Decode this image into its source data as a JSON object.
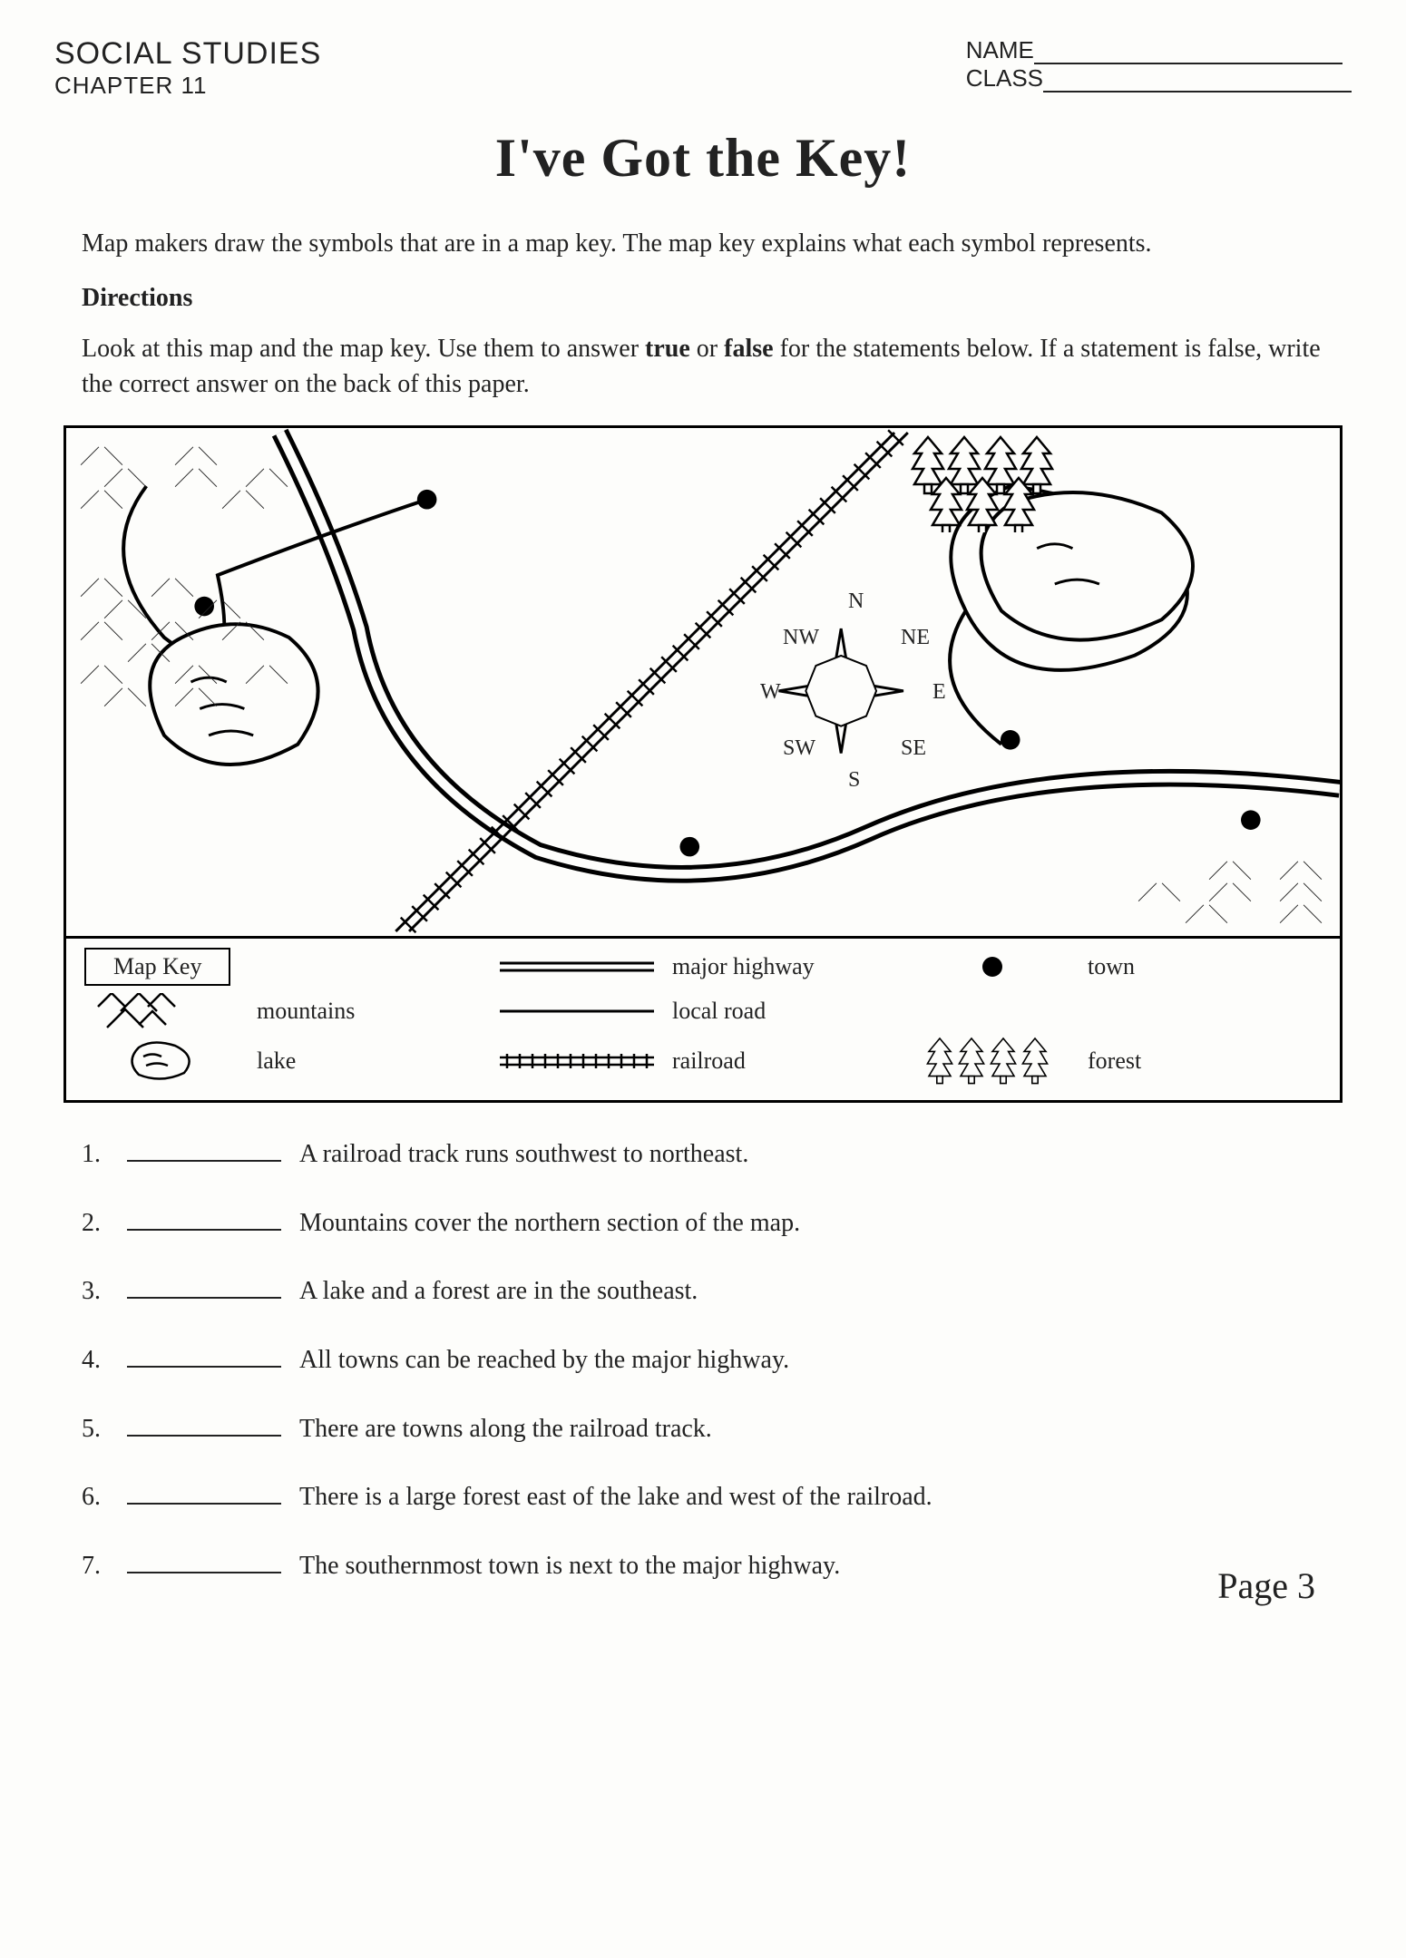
{
  "header": {
    "subject": "SOCIAL STUDIES",
    "chapter": "CHAPTER 11",
    "name_label": "NAME",
    "class_label": "CLASS"
  },
  "title": "I've Got the Key!",
  "intro": "Map makers draw the symbols that are in a map key.  The map key explains what each symbol represents.",
  "directions_label": "Directions",
  "directions_body_pre": "Look at this map and the map key.  Use them to answer ",
  "directions_true": "true",
  "directions_or": " or ",
  "directions_false": "false",
  "directions_body_post": " for the statements below.  If a statement is false, write the correct answer on the back of this paper.",
  "map_key": {
    "title": "Map Key",
    "items": {
      "mountains": "mountains",
      "lake": "lake",
      "highway": "major highway",
      "local": "local road",
      "railroad": "railroad",
      "town": "town",
      "forest": "forest"
    }
  },
  "compass": {
    "N": "N",
    "S": "S",
    "E": "E",
    "W": "W",
    "NE": "NE",
    "NW": "NW",
    "SE": "SE",
    "SW": "SW"
  },
  "questions": [
    "A railroad track runs southwest to northeast.",
    "Mountains cover the northern section of the map.",
    "A lake and a forest are in the southeast.",
    "All towns can be reached by the major highway.",
    "There are towns along the railroad track.",
    "There is a large forest east of the lake and west of the railroad.",
    "The southernmost town is next to the major highway."
  ],
  "page_label": "Page 3",
  "colors": {
    "ink": "#000000",
    "paper": "#fdfdfb"
  }
}
